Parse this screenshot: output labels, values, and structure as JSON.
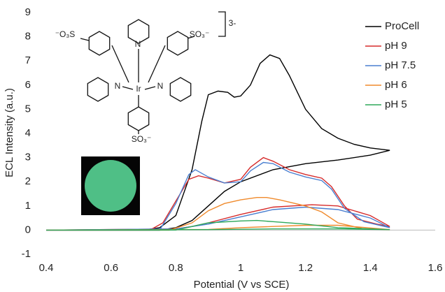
{
  "chart_data": {
    "type": "line",
    "xlabel": "Potential (V vs SCE)",
    "ylabel": "ECL Intensity (a.u.)",
    "xlim": [
      0.4,
      1.6
    ],
    "xticks": [
      0.4,
      0.6,
      0.8,
      1,
      1.2,
      1.4,
      1.6
    ],
    "ylim": [
      -1,
      9
    ],
    "yticks": [
      -1,
      0,
      1,
      2,
      3,
      4,
      5,
      6,
      7,
      8,
      9
    ],
    "grid": false,
    "legend": "upper right",
    "annotations": [
      "⁻O₃S",
      "SO₃⁻",
      "N",
      "Ir",
      "N",
      "N",
      "SO₃⁻",
      "3-"
    ],
    "series": [
      {
        "name": "ProCell",
        "color": "#000000",
        "x": [
          0.4,
          0.7,
          0.75,
          0.8,
          0.85,
          0.88,
          0.9,
          0.93,
          0.96,
          0.98,
          1.0,
          1.03,
          1.06,
          1.09,
          1.12,
          1.15,
          1.2,
          1.25,
          1.3,
          1.35,
          1.4,
          1.46,
          1.4,
          1.3,
          1.2,
          1.1,
          1.0,
          0.95,
          0.9,
          0.85,
          0.8,
          0.75,
          0.4
        ],
        "values": [
          0,
          0,
          0.1,
          0.6,
          2.5,
          4.5,
          5.6,
          5.75,
          5.7,
          5.5,
          5.55,
          6.0,
          6.9,
          7.25,
          7.1,
          6.4,
          5.0,
          4.2,
          3.8,
          3.55,
          3.4,
          3.3,
          3.1,
          2.9,
          2.75,
          2.5,
          2.0,
          1.6,
          1.0,
          0.4,
          0.1,
          0,
          0
        ]
      },
      {
        "name": "pH 9",
        "color": "#d62b2b",
        "x": [
          0.4,
          0.72,
          0.76,
          0.8,
          0.84,
          0.87,
          0.9,
          0.95,
          1.0,
          1.03,
          1.07,
          1.1,
          1.15,
          1.2,
          1.25,
          1.28,
          1.32,
          1.36,
          1.42,
          1.46,
          1.4,
          1.3,
          1.22,
          1.1,
          1.0,
          0.9,
          0.85,
          0.8,
          0.4
        ],
        "values": [
          0,
          0,
          0.3,
          1.2,
          2.1,
          2.25,
          2.15,
          1.95,
          2.1,
          2.6,
          3.0,
          2.85,
          2.5,
          2.3,
          2.15,
          1.8,
          1.0,
          0.45,
          0.25,
          0.15,
          0.6,
          1.0,
          1.05,
          0.95,
          0.65,
          0.3,
          0.15,
          0.05,
          0
        ]
      },
      {
        "name": "pH 7.5",
        "color": "#4a7fd0",
        "x": [
          0.4,
          0.75,
          0.8,
          0.84,
          0.86,
          0.9,
          0.95,
          1.0,
          1.03,
          1.07,
          1.1,
          1.15,
          1.2,
          1.25,
          1.28,
          1.32,
          1.38,
          1.46,
          1.4,
          1.3,
          1.2,
          1.1,
          1.0,
          0.9,
          0.8,
          0.4
        ],
        "values": [
          0,
          0,
          1.1,
          2.3,
          2.5,
          2.2,
          1.95,
          2.0,
          2.45,
          2.8,
          2.75,
          2.4,
          2.2,
          2.05,
          1.7,
          0.9,
          0.35,
          0.1,
          0.5,
          0.85,
          0.95,
          0.85,
          0.55,
          0.25,
          0.05,
          0
        ]
      },
      {
        "name": "pH 6",
        "color": "#f08a2c",
        "x": [
          0.4,
          0.78,
          0.85,
          0.9,
          0.95,
          1.0,
          1.05,
          1.08,
          1.12,
          1.2,
          1.25,
          1.3,
          1.38,
          1.46,
          1.3,
          1.2,
          1.1,
          1.0,
          0.9,
          0.4
        ],
        "values": [
          0,
          0,
          0.3,
          0.8,
          1.1,
          1.25,
          1.35,
          1.35,
          1.25,
          1.0,
          0.75,
          0.3,
          0.05,
          0.02,
          0.2,
          0.2,
          0.15,
          0.1,
          0.03,
          0
        ]
      },
      {
        "name": "pH 5",
        "color": "#2ea85a",
        "x": [
          0.4,
          0.8,
          0.85,
          0.9,
          1.0,
          1.05,
          1.1,
          1.2,
          1.3,
          1.46,
          1.3,
          1.1,
          0.9,
          0.4
        ],
        "values": [
          0,
          0,
          0.15,
          0.3,
          0.38,
          0.4,
          0.35,
          0.25,
          0.1,
          0.02,
          0.05,
          0.05,
          0.02,
          0
        ]
      }
    ]
  }
}
